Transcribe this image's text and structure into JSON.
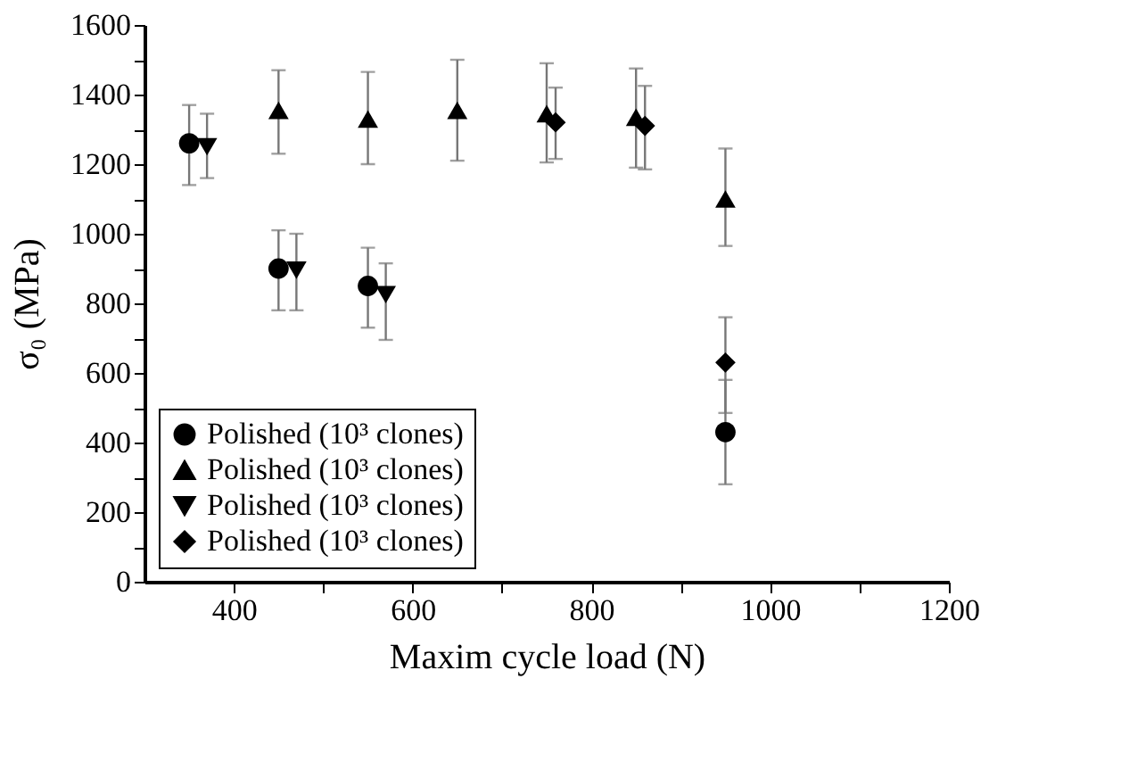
{
  "chart_data": {
    "type": "scatter",
    "xlabel": "Maxim cycle load (N)",
    "ylabel": "σ₀ (MPa)",
    "xlim": [
      300,
      1200
    ],
    "ylim": [
      0,
      1600
    ],
    "xticks": [
      400,
      {
        "value": 500,
        "label": null
      },
      600,
      {
        "value": 700,
        "label": null
      },
      800,
      {
        "value": 900,
        "label": null
      },
      1000,
      {
        "value": 1100,
        "label": null
      },
      1200
    ],
    "yticks": [
      0,
      {
        "value": 100,
        "label": null
      },
      200,
      {
        "value": 300,
        "label": null
      },
      400,
      {
        "value": 500,
        "label": null
      },
      600,
      {
        "value": 700,
        "label": null
      },
      800,
      {
        "value": 900,
        "label": null
      },
      1000,
      {
        "value": 1100,
        "label": null
      },
      1200,
      {
        "value": 1300,
        "label": null
      },
      1400,
      {
        "value": 1500,
        "label": null
      },
      1600
    ],
    "grid": false,
    "legend": "bottom left",
    "series": [
      {
        "name": "Polished (10³ clones)",
        "color": "#000000",
        "marker": "circle",
        "x": [
          350,
          450,
          550,
          950
        ],
        "values": [
          1260,
          900,
          850,
          430
        ],
        "errors": [
          [
            1140,
            1370
          ],
          [
            780,
            1010
          ],
          [
            730,
            960
          ],
          [
            280,
            580
          ]
        ]
      },
      {
        "name": "Polished (10³ clones)",
        "color": "#000000",
        "marker": "triangle",
        "x": [
          450,
          550,
          650,
          750,
          850,
          950
        ],
        "values": [
          1355,
          1330,
          1355,
          1345,
          1335,
          1100
        ],
        "errors": [
          [
            1230,
            1470
          ],
          [
            1200,
            1465
          ],
          [
            1210,
            1500
          ],
          [
            1205,
            1490
          ],
          [
            1190,
            1475
          ],
          [
            965,
            1245
          ]
        ]
      },
      {
        "name": "Polished (10³ clones)",
        "color": "#000000",
        "marker": "triangle-down",
        "x": [
          370,
          470,
          570
        ],
        "values": [
          1250,
          895,
          825
        ],
        "errors": [
          [
            1160,
            1345
          ],
          [
            780,
            1000
          ],
          [
            695,
            915
          ]
        ]
      },
      {
        "name": "Polished (10³ clones)",
        "color": "#000000",
        "marker": "diamond",
        "x": [
          760,
          860,
          950
        ],
        "values": [
          1320,
          1310,
          630
        ],
        "errors": [
          [
            1215,
            1420
          ],
          [
            1185,
            1425
          ],
          [
            485,
            760
          ]
        ]
      }
    ]
  }
}
